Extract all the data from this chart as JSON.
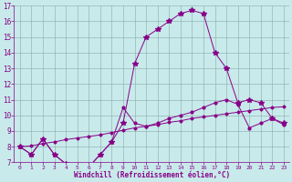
{
  "xlabel": "Windchill (Refroidissement éolien,°C)",
  "background_color": "#c8eaea",
  "line_color": "#880088",
  "grid_color": "#88aaaa",
  "xlim": [
    -0.5,
    23.5
  ],
  "ylim": [
    7,
    17
  ],
  "xticks": [
    0,
    1,
    2,
    3,
    4,
    5,
    6,
    7,
    8,
    9,
    10,
    11,
    12,
    13,
    14,
    15,
    16,
    17,
    18,
    19,
    20,
    21,
    22,
    23
  ],
  "yticks": [
    7,
    8,
    9,
    10,
    11,
    12,
    13,
    14,
    15,
    16,
    17
  ],
  "series1_x": [
    0,
    1,
    2,
    3,
    4,
    5,
    6,
    7,
    8,
    9,
    10,
    11,
    12,
    13,
    14,
    15,
    16,
    17,
    18,
    19,
    20,
    21,
    22,
    23
  ],
  "series1_y": [
    8.0,
    7.5,
    8.5,
    7.5,
    6.9,
    6.7,
    6.7,
    7.5,
    8.3,
    10.5,
    9.5,
    9.3,
    9.5,
    9.8,
    10.0,
    10.2,
    10.5,
    10.8,
    11.0,
    10.7,
    9.2,
    9.5,
    9.8,
    9.4
  ],
  "series2_x": [
    0,
    1,
    2,
    3,
    4,
    5,
    6,
    7,
    8,
    9,
    10,
    11,
    12,
    13,
    14,
    15,
    16,
    17,
    18,
    19,
    20,
    21,
    22,
    23
  ],
  "series2_y": [
    8.0,
    7.5,
    8.5,
    7.5,
    6.9,
    6.7,
    6.7,
    7.5,
    8.3,
    9.5,
    13.3,
    15.0,
    15.5,
    16.0,
    16.5,
    16.7,
    16.5,
    14.0,
    13.0,
    10.8,
    11.0,
    10.8,
    9.8,
    9.5
  ],
  "series3_x": [
    0,
    1,
    2,
    3,
    4,
    5,
    6,
    7,
    8,
    9,
    10,
    11,
    12,
    13,
    14,
    15,
    16,
    17,
    18,
    19,
    20,
    21,
    22,
    23
  ],
  "series3_y": [
    8.0,
    8.05,
    8.2,
    8.3,
    8.45,
    8.55,
    8.65,
    8.75,
    8.9,
    9.05,
    9.2,
    9.3,
    9.4,
    9.55,
    9.65,
    9.8,
    9.9,
    10.0,
    10.1,
    10.2,
    10.3,
    10.4,
    10.5,
    10.55
  ],
  "xlabel_fontsize": 5.5,
  "ytick_fontsize": 5.5,
  "xtick_fontsize": 4.5,
  "marker_size": 2.0,
  "linewidth": 0.7
}
